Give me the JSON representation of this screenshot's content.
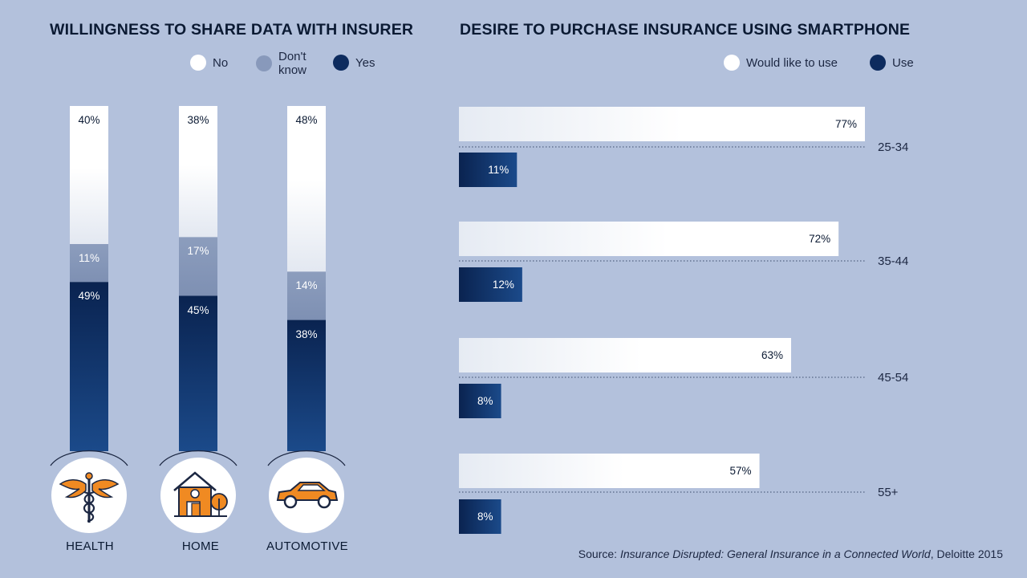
{
  "left_chart": {
    "title": "WILLINGNESS TO SHARE DATA WITH INSURER",
    "legend": [
      {
        "label": "No",
        "color": "#ffffff"
      },
      {
        "label": "Don't know",
        "color": "#8899bb"
      },
      {
        "label": "Yes",
        "color": "#0d2b5e"
      }
    ]
  },
  "right_chart": {
    "title": "DESIRE TO PURCHASE INSURANCE USING SMARTPHONE",
    "legend": [
      {
        "label": "Would like to use",
        "color": "#ffffff"
      },
      {
        "label": "Use",
        "color": "#0d2b5e"
      }
    ]
  },
  "chart_data": [
    {
      "type": "bar",
      "stacked": true,
      "title": "WILLINGNESS TO SHARE DATA WITH INSURER",
      "categories": [
        "HEALTH",
        "HOME",
        "AUTOMOTIVE"
      ],
      "icons": [
        "caduceus-icon",
        "house-icon",
        "car-icon"
      ],
      "series": [
        {
          "name": "No",
          "values": [
            40,
            38,
            48
          ],
          "labels": [
            "40%",
            "38%",
            "48%"
          ],
          "color": "#ffffff"
        },
        {
          "name": "Don't know",
          "values": [
            11,
            17,
            14
          ],
          "labels": [
            "11%",
            "17%",
            "14%"
          ],
          "color": "#8899bb"
        },
        {
          "name": "Yes",
          "values": [
            49,
            45,
            38
          ],
          "labels": [
            "49%",
            "45%",
            "38%"
          ],
          "color": "#0d2b5e"
        }
      ],
      "ylim": [
        0,
        100
      ],
      "legend": "top"
    },
    {
      "type": "bar",
      "orientation": "horizontal",
      "title": "DESIRE TO PURCHASE INSURANCE USING SMARTPHONE",
      "categories": [
        "25-34",
        "35-44",
        "45-54",
        "55+"
      ],
      "series": [
        {
          "name": "Would like to use",
          "values": [
            77,
            72,
            63,
            57
          ],
          "labels": [
            "77%",
            "72%",
            "63%",
            "57%"
          ],
          "color": "#ffffff"
        },
        {
          "name": "Use",
          "values": [
            11,
            12,
            8,
            8
          ],
          "labels": [
            "11%",
            "12%",
            "8%",
            "8%"
          ],
          "color": "#0d2b5e"
        }
      ],
      "xlim": [
        0,
        100
      ],
      "legend": "top-right"
    }
  ],
  "source": {
    "prefix": "Source: ",
    "title": "Insurance Disrupted: General Insurance in a Connected World",
    "suffix": ", Deloitte 2015"
  }
}
